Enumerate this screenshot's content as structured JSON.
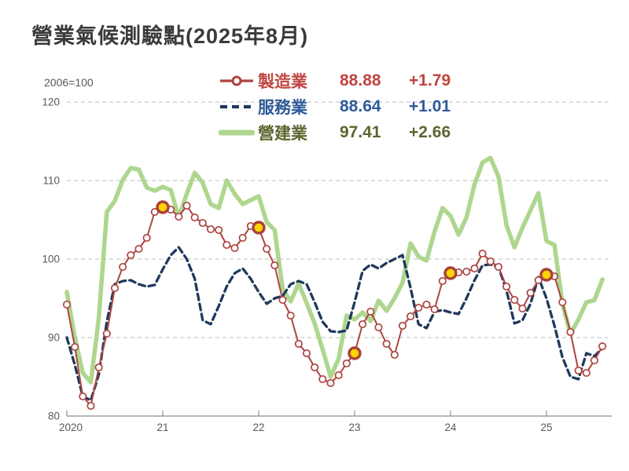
{
  "title": "營業氣候測驗點(2025年8月)",
  "axis_note": "2006=100",
  "legend": {
    "items": [
      {
        "name": "製造業",
        "value": "88.88",
        "change": "+1.79",
        "text_color": "#c04540",
        "swatch": "line-marker",
        "swatch_color": "#ac4540"
      },
      {
        "name": "服務業",
        "value": "88.64",
        "change": "+1.01",
        "text_color": "#2e5a97",
        "swatch": "dashed-line",
        "swatch_color": "#20395c"
      },
      {
        "name": "營建業",
        "value": "97.41",
        "change": "+2.66",
        "text_color": "#5a662e",
        "swatch": "thick-line",
        "swatch_color": "#aed68f"
      }
    ]
  },
  "chart_data": {
    "type": "line",
    "title": "營業氣候測驗點(2025年8月)",
    "index_note": "2006=100",
    "x_unit": "month",
    "x_range": "2020-01 to 2025-08",
    "x_ticks": [
      {
        "label": "2020",
        "month": 0
      },
      {
        "label": "21",
        "month": 12
      },
      {
        "label": "22",
        "month": 24
      },
      {
        "label": "23",
        "month": 36
      },
      {
        "label": "24",
        "month": 48
      },
      {
        "label": "25",
        "month": 60
      }
    ],
    "y_ticks": [
      80,
      90,
      100,
      110,
      120
    ],
    "ylim": [
      80,
      120
    ],
    "grid": "horizontal-dashed",
    "colors": {
      "manufacturing": "#ac4540",
      "services": "#20395c",
      "construction": "#aed68f",
      "highlight": "#ffd400",
      "gridline": "#c9c9c9",
      "axis": "#9f9f9f",
      "axis_text": "#595959"
    },
    "series": [
      {
        "name": "製造業",
        "key": "manufacturing",
        "layer": 2,
        "color": "#ac4540",
        "line_width": 2,
        "dash": null,
        "marker": {
          "shape": "circle",
          "fill": "#ffffff",
          "radius": 4.2,
          "stroke_width": 1.7
        },
        "latest_value": 88.88,
        "latest_change": "+1.79",
        "values": [
          94.2,
          88.8,
          82.5,
          81.3,
          86.2,
          90.5,
          96.3,
          99.0,
          100.5,
          101.3,
          102.7,
          106.0,
          106.6,
          106.3,
          105.4,
          106.8,
          105.3,
          104.6,
          103.8,
          103.7,
          101.8,
          101.4,
          102.7,
          104.2,
          104.0,
          101.3,
          99.2,
          94.8,
          92.8,
          89.2,
          88.0,
          86.2,
          84.7,
          84.2,
          85.2,
          86.7,
          88.0,
          91.7,
          93.3,
          91.3,
          89.2,
          87.8,
          91.5,
          92.7,
          93.8,
          94.2,
          93.6,
          97.2,
          98.2,
          98.3,
          98.4,
          98.8,
          100.7,
          99.7,
          99.0,
          96.5,
          94.8,
          93.7,
          95.7,
          97.3,
          98.0,
          97.8,
          94.5,
          90.7,
          85.8,
          85.5,
          87.09,
          88.88
        ]
      },
      {
        "name": "服務業",
        "key": "services",
        "layer": 1,
        "color": "#20395c",
        "line_width": 3.3,
        "dash": "8 5",
        "marker": null,
        "latest_value": 88.64,
        "latest_change": "+1.01",
        "values": [
          90.0,
          86.5,
          82.5,
          82.0,
          85.3,
          92.0,
          96.8,
          97.2,
          97.3,
          96.8,
          96.5,
          96.7,
          98.7,
          100.5,
          101.5,
          100.0,
          97.5,
          92.2,
          91.7,
          94.0,
          96.5,
          98.2,
          98.8,
          97.5,
          95.8,
          94.3,
          95.0,
          95.3,
          96.8,
          97.2,
          96.8,
          94.5,
          92.0,
          90.8,
          90.7,
          90.9,
          94.5,
          98.5,
          99.3,
          98.8,
          99.5,
          100.0,
          100.5,
          96.3,
          91.7,
          91.2,
          93.3,
          93.5,
          93.2,
          93.0,
          95.0,
          97.3,
          99.2,
          99.3,
          99.0,
          96.0,
          91.8,
          92.2,
          94.3,
          97.7,
          95.0,
          91.5,
          87.5,
          85.0,
          84.7,
          88.0,
          87.63,
          88.64
        ]
      },
      {
        "name": "營建業",
        "key": "construction",
        "layer": 0,
        "color": "#aed68f",
        "line_width": 5.5,
        "dash": null,
        "marker": null,
        "latest_value": 97.41,
        "latest_change": "+2.66",
        "values": [
          95.8,
          90.0,
          85.5,
          84.3,
          92.5,
          106.0,
          107.4,
          110.1,
          111.6,
          111.4,
          109.1,
          108.7,
          109.2,
          108.8,
          105.3,
          108.3,
          111.0,
          109.7,
          107.0,
          106.5,
          110.0,
          108.3,
          107.0,
          107.5,
          108.0,
          104.7,
          103.7,
          96.2,
          94.6,
          96.9,
          94.4,
          91.8,
          88.5,
          85.0,
          87.3,
          92.8,
          92.3,
          93.2,
          92.1,
          94.7,
          93.4,
          95.0,
          97.0,
          102.0,
          100.3,
          99.8,
          103.5,
          106.5,
          105.5,
          103.1,
          105.3,
          109.5,
          112.3,
          112.9,
          110.5,
          104.3,
          101.5,
          104.0,
          106.2,
          108.4,
          102.3,
          101.8,
          94.3,
          90.5,
          92.3,
          94.5,
          94.75,
          97.41
        ]
      }
    ],
    "highlights": {
      "series_name": "製造業",
      "month_indices": [
        12,
        24,
        36,
        48,
        60
      ],
      "fill": "#ffd400",
      "stroke": "#a8423a",
      "radius": 7
    }
  }
}
